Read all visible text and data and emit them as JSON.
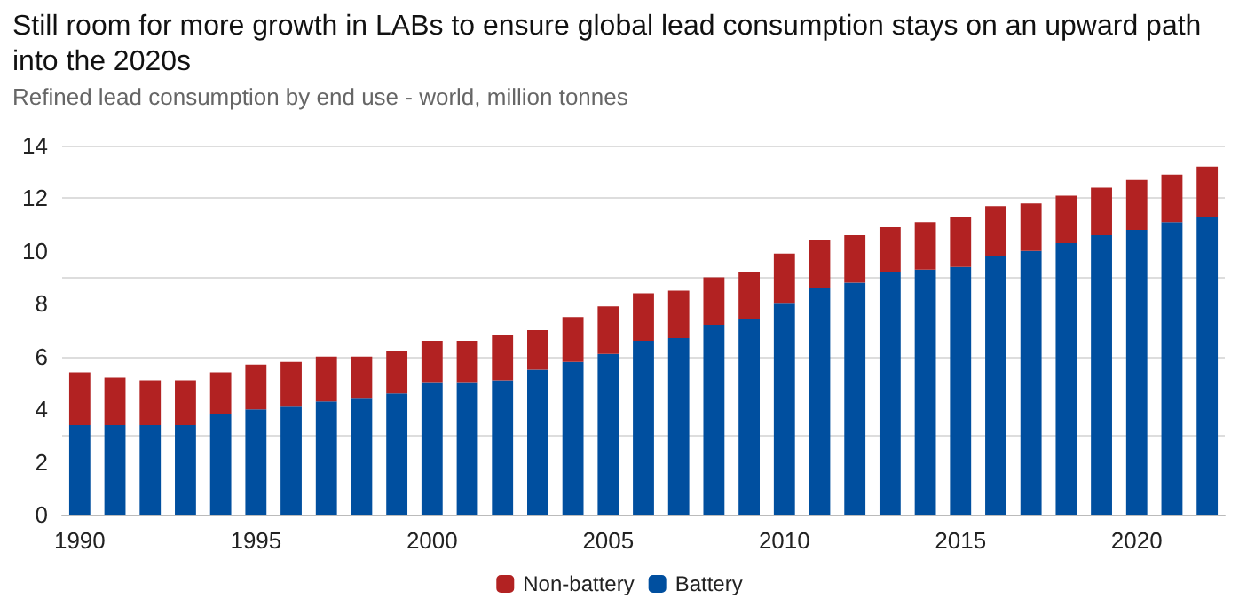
{
  "chart_data": {
    "type": "bar",
    "title": "Still room for more growth in LABs to ensure global lead consumption stays on an upward path into the 2020s",
    "subtitle": "Refined lead consumption by end use - world, million tonnes",
    "categories": [
      "1990",
      null,
      null,
      null,
      null,
      "1995",
      null,
      null,
      null,
      null,
      "2000",
      null,
      null,
      null,
      null,
      "2005",
      null,
      null,
      null,
      null,
      "2010",
      null,
      null,
      null,
      null,
      "2015",
      null,
      null,
      null,
      null,
      "2020",
      null,
      null
    ],
    "stacked": true,
    "series": [
      {
        "name": "Battery",
        "color": "#004f9f",
        "values": [
          3.4,
          3.4,
          3.4,
          3.4,
          3.8,
          4.0,
          4.1,
          4.3,
          4.4,
          4.6,
          5.0,
          5.0,
          5.1,
          5.5,
          5.8,
          6.1,
          6.6,
          6.7,
          7.2,
          7.4,
          8.0,
          8.6,
          8.8,
          9.2,
          9.3,
          9.4,
          9.8,
          10.0,
          10.3,
          10.6,
          10.8,
          11.1,
          11.3
        ]
      },
      {
        "name": "Non-battery",
        "color": "#b22222",
        "values": [
          2.0,
          1.8,
          1.7,
          1.7,
          1.6,
          1.7,
          1.7,
          1.7,
          1.6,
          1.6,
          1.6,
          1.6,
          1.7,
          1.5,
          1.7,
          1.8,
          1.8,
          1.8,
          1.8,
          1.8,
          1.9,
          1.8,
          1.8,
          1.7,
          1.8,
          1.9,
          1.9,
          1.8,
          1.8,
          1.8,
          1.9,
          1.8,
          1.9
        ]
      }
    ],
    "ylim": [
      0,
      14
    ],
    "yticks": [
      0,
      2,
      4,
      6,
      8,
      10,
      12,
      14
    ],
    "grid": "y",
    "legend": "bottom"
  }
}
